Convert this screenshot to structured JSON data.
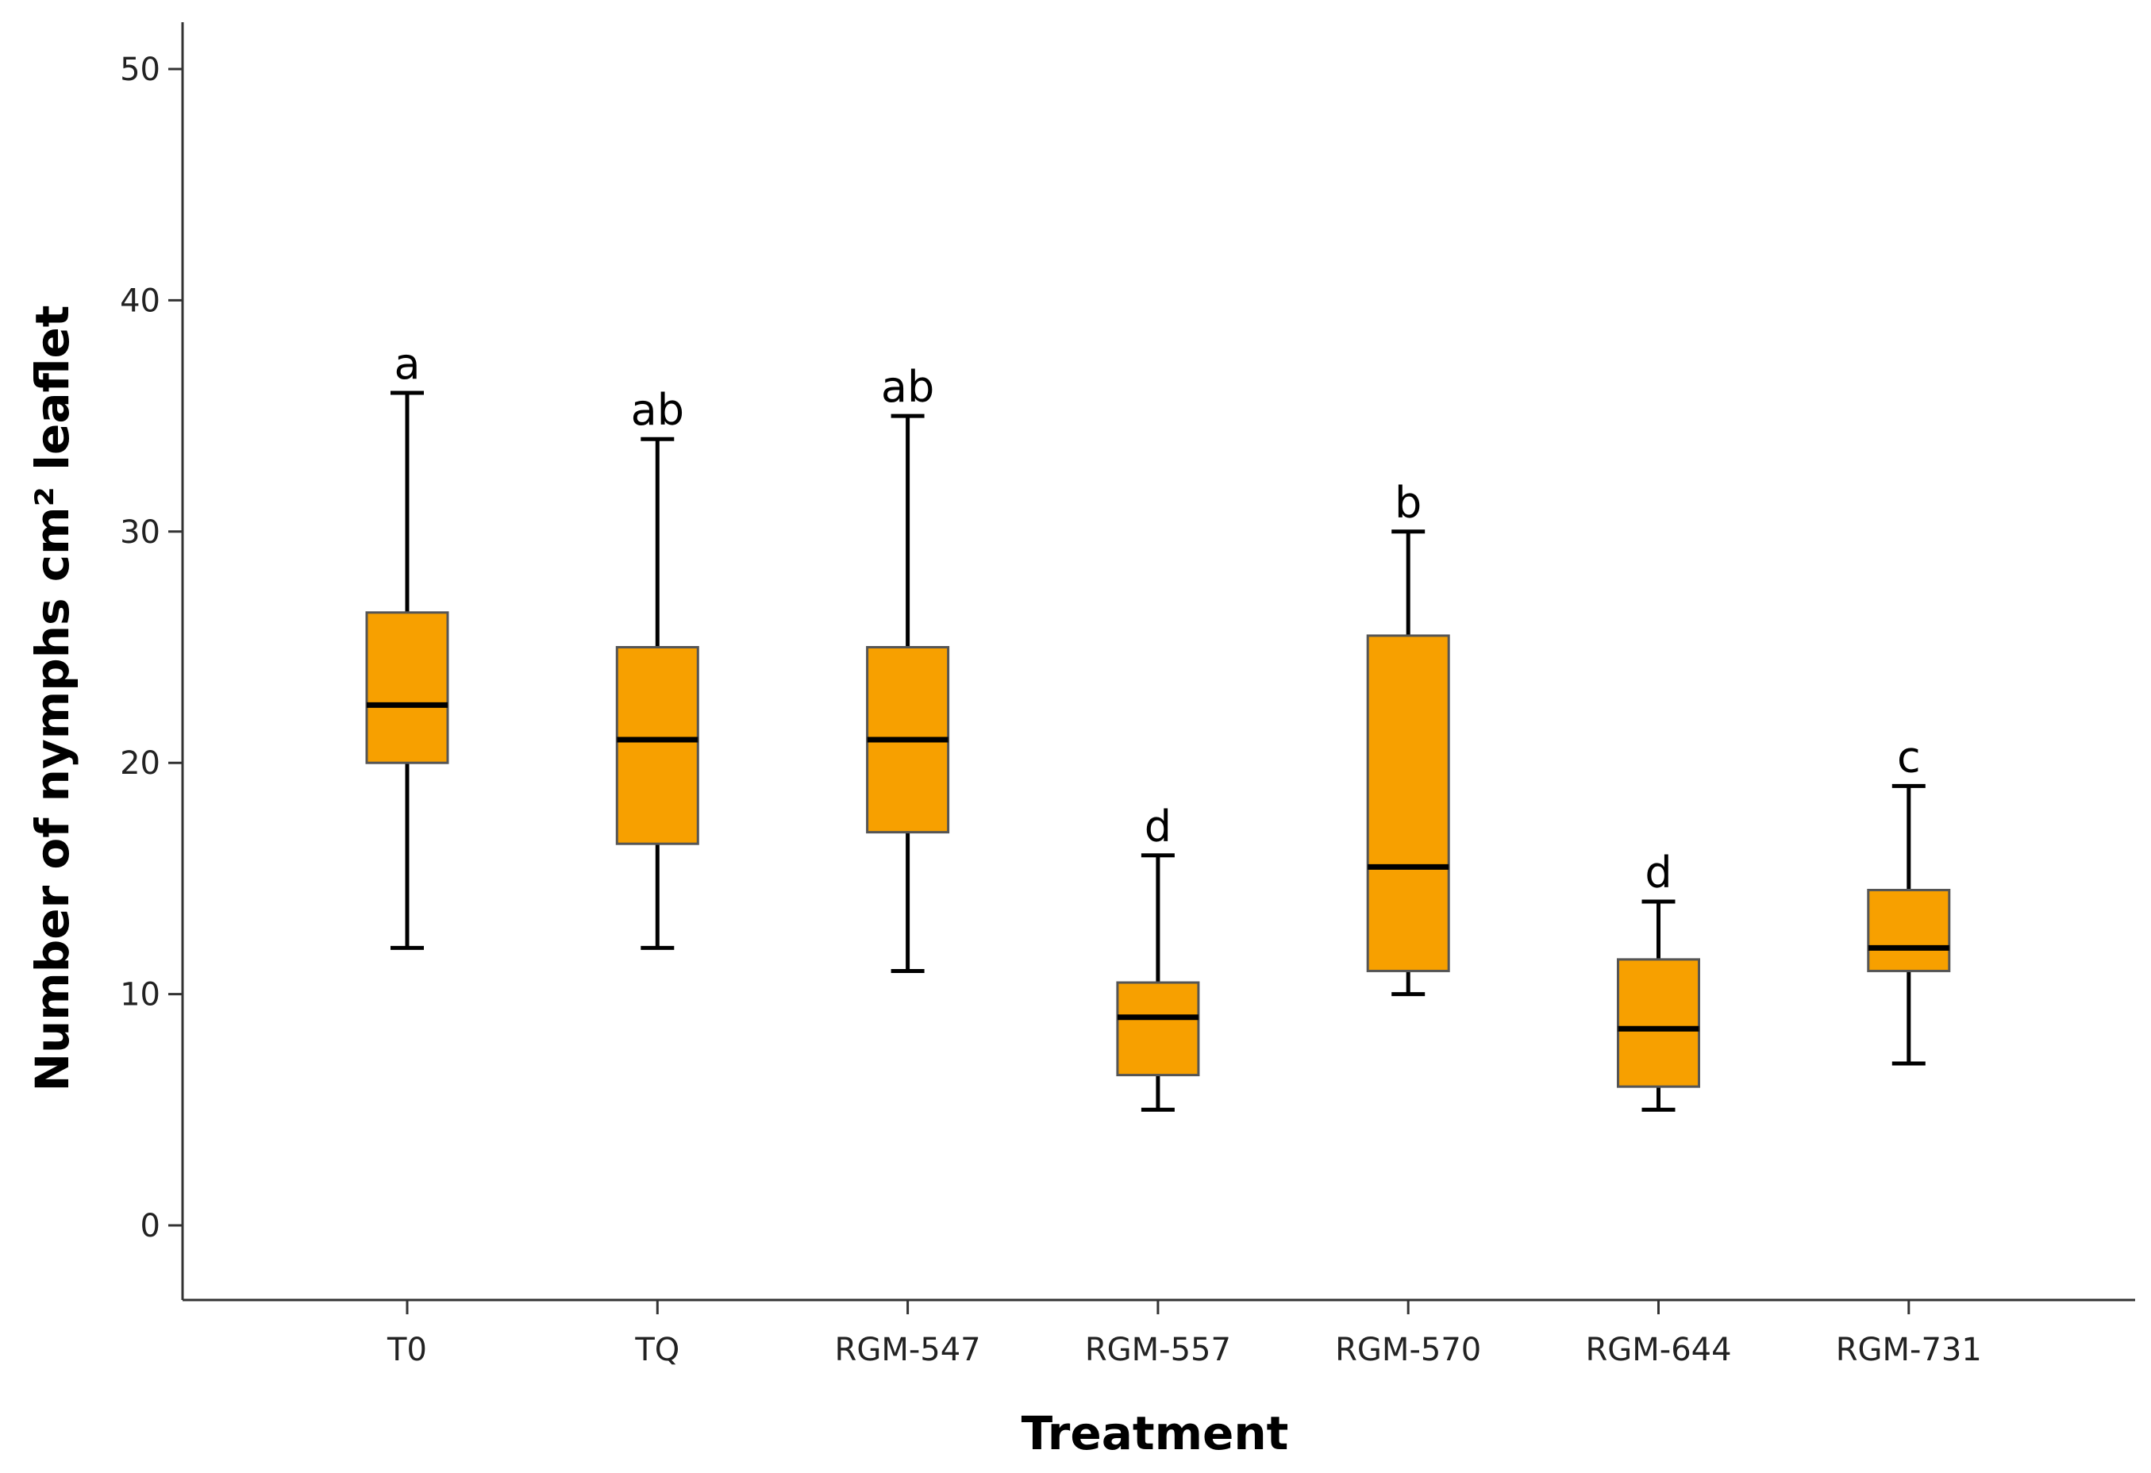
{
  "chart_data": {
    "type": "box",
    "title": "",
    "xlabel": "Treatment",
    "ylabel": "Number of nymphs cm² leaflet",
    "ylim": [
      -3,
      52
    ],
    "yticks": [
      0,
      10,
      20,
      30,
      40,
      50
    ],
    "ytick_labels": [
      "0",
      "10",
      "20",
      "30",
      "40",
      "50"
    ],
    "grid": false,
    "colors": {
      "box_fill": "#F7A000",
      "box_stroke": "#555555",
      "median": "#000000",
      "whisker": "#000000",
      "axis": "#333333"
    },
    "categories": [
      "T0",
      "TQ",
      "RGM-547",
      "RGM-557",
      "RGM-570",
      "RGM-644",
      "RGM-731"
    ],
    "boxes": [
      {
        "category": "T0",
        "min": 12,
        "q1": 20,
        "median": 22.5,
        "q3": 26.5,
        "max": 36,
        "group": "a"
      },
      {
        "category": "TQ",
        "min": 12,
        "q1": 16.5,
        "median": 21,
        "q3": 25,
        "max": 34,
        "group": "ab"
      },
      {
        "category": "RGM-547",
        "min": 11,
        "q1": 17,
        "median": 21,
        "q3": 25,
        "max": 35,
        "group": "ab"
      },
      {
        "category": "RGM-557",
        "min": 5,
        "q1": 6.5,
        "median": 9,
        "q3": 10.5,
        "max": 16,
        "group": "d"
      },
      {
        "category": "RGM-570",
        "min": 10,
        "q1": 11,
        "median": 15.5,
        "q3": 25.5,
        "max": 30,
        "group": "b"
      },
      {
        "category": "RGM-644",
        "min": 5,
        "q1": 6,
        "median": 8.5,
        "q3": 11.5,
        "max": 14,
        "group": "d"
      },
      {
        "category": "RGM-731",
        "min": 7,
        "q1": 11,
        "median": 12,
        "q3": 14.5,
        "max": 19,
        "group": "c"
      }
    ]
  }
}
